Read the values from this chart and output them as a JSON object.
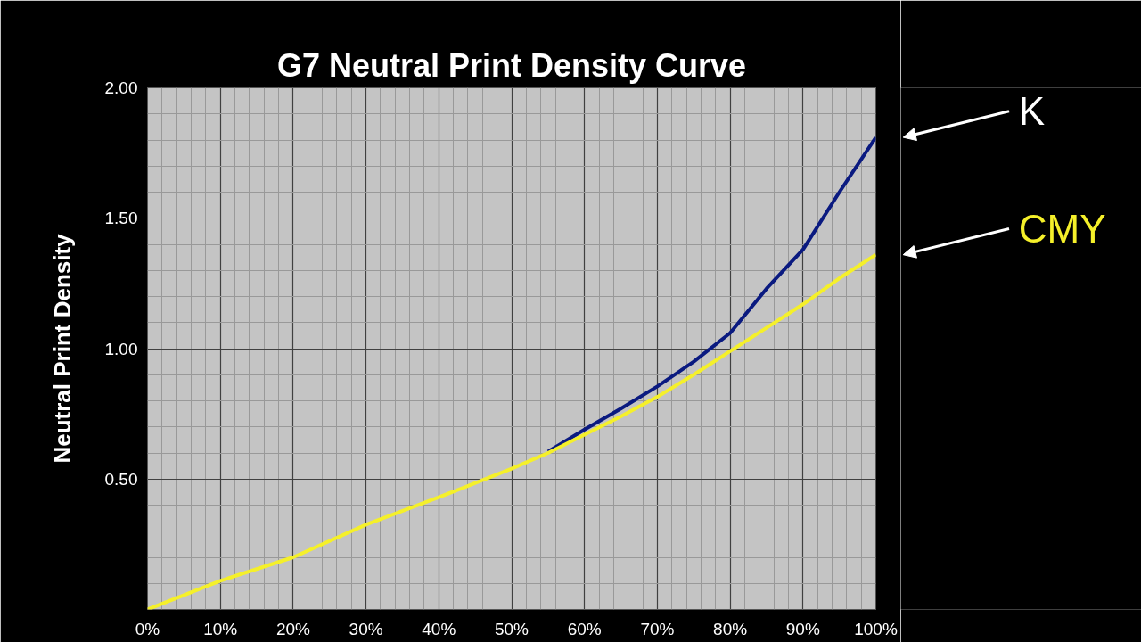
{
  "chart_data": {
    "type": "line",
    "title": "G7 Neutral Print Density Curve",
    "ylabel": "Neutral Print Density",
    "xlim": [
      0,
      100
    ],
    "ylim": [
      0,
      2
    ],
    "xticks": [
      {
        "value": 0,
        "label": "0%"
      },
      {
        "value": 10,
        "label": "10%"
      },
      {
        "value": 20,
        "label": "20%"
      },
      {
        "value": 30,
        "label": "30%"
      },
      {
        "value": 40,
        "label": "40%"
      },
      {
        "value": 50,
        "label": "50%"
      },
      {
        "value": 60,
        "label": "60%"
      },
      {
        "value": 70,
        "label": "70%"
      },
      {
        "value": 80,
        "label": "80%"
      },
      {
        "value": 90,
        "label": "90%"
      },
      {
        "value": 100,
        "label": "100%"
      }
    ],
    "yticks": [
      {
        "value": 0.5,
        "label": "0.50"
      },
      {
        "value": 1,
        "label": "1.00"
      },
      {
        "value": 1.5,
        "label": "1.50"
      },
      {
        "value": 2,
        "label": "2.00"
      }
    ],
    "grid": true,
    "series": [
      {
        "name": "K",
        "color": "#0a1a80",
        "x": [
          55,
          60,
          65,
          70,
          75,
          80,
          85,
          90,
          95,
          100
        ],
        "values": [
          0.605,
          0.69,
          0.77,
          0.855,
          0.95,
          1.06,
          1.23,
          1.38,
          1.6,
          1.81
        ]
      },
      {
        "name": "CMY",
        "color": "#f5f02a",
        "x": [
          0,
          10,
          20,
          30,
          40,
          50,
          55,
          60,
          65,
          70,
          75,
          80,
          85,
          90,
          95,
          100
        ],
        "values": [
          0,
          0.11,
          0.2,
          0.325,
          0.43,
          0.54,
          0.6,
          0.67,
          0.74,
          0.815,
          0.9,
          0.99,
          1.08,
          1.17,
          1.27,
          1.36
        ]
      }
    ]
  }
}
